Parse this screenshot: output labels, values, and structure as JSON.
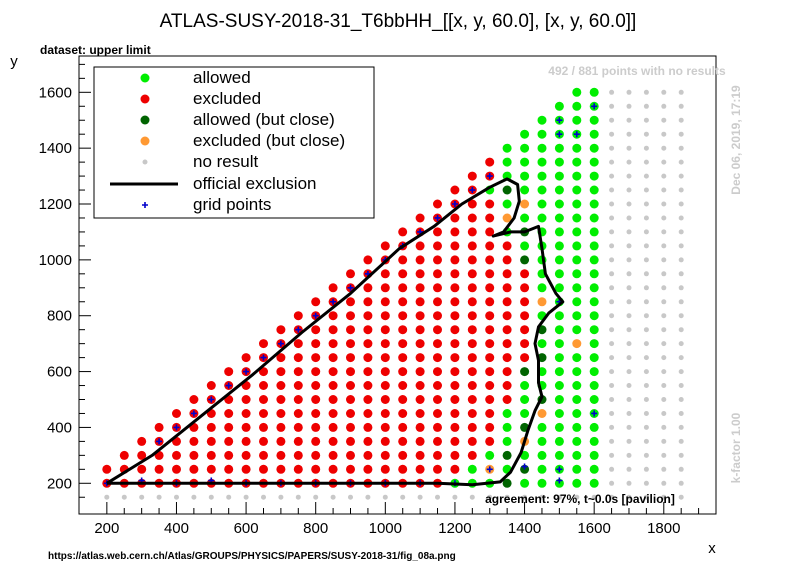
{
  "page": {
    "title": "ATLAS-SUSY-2018-31_T6bbHH_[[x, y, 60.0], [x, y, 60.0]]",
    "dataset_label": "dataset: upper limit",
    "points_note": "492 / 881 points with no results",
    "date_note": "Dec 06, 2019, 17:19",
    "kfactor_note": "k-factor 1.00",
    "agreement_note": "agreement: 97%, t~0.0s [pavilion]",
    "source_url": "https://atlas.web.cern.ch/Atlas/GROUPS/PHYSICS/PAPERS/SUSY-2018-31/fig_08a.png",
    "legend": {
      "allowed": "allowed",
      "excluded": "excluded",
      "allowed_close": "allowed (but close)",
      "excluded_close": "excluded (but close)",
      "no_result": "no result",
      "official": "official exclusion",
      "grid": "grid points"
    }
  },
  "colors": {
    "allowed": "#00ee00",
    "excluded": "#ee0000",
    "allowed_close": "#006400",
    "excluded_close": "#ff9933",
    "no_result": "#c8c8c8",
    "official": "#000000",
    "grid": "#0000cc"
  },
  "chart_data": {
    "type": "scatter",
    "title": "ATLAS-SUSY-2018-31_T6bbHH_[[x, y, 60.0], [x, y, 60.0]]",
    "xlabel": "x",
    "ylabel": "y",
    "xlim": [
      120,
      1950
    ],
    "ylim": [
      90,
      1730
    ],
    "x_ticks": [
      200,
      400,
      600,
      800,
      1000,
      1200,
      1400,
      1600,
      1800
    ],
    "y_ticks": [
      200,
      400,
      600,
      800,
      1000,
      1200,
      1400,
      1600
    ],
    "legend_position": "top-left",
    "grid_region": {
      "x_start": 200,
      "x_end": 1850,
      "x_step": 50,
      "y_start": 150,
      "y_end": 1600,
      "y_step": 50,
      "note": "points with y <= x + 50 on the lattice"
    },
    "classification_rule": {
      "allowed_boundary_x": [
        [
          200,
          1170
        ],
        [
          300,
          1300
        ],
        [
          450,
          1350
        ],
        [
          600,
          1400
        ],
        [
          750,
          1450
        ],
        [
          900,
          1450
        ],
        [
          1100,
          1350
        ],
        [
          1250,
          1300
        ],
        [
          1600,
          1350
        ]
      ],
      "result_limit_x": 1600,
      "excluded_close": [
        [
          1300,
          250
        ],
        [
          1400,
          350
        ],
        [
          1450,
          450
        ],
        [
          1550,
          700
        ],
        [
          1450,
          850
        ],
        [
          1350,
          1150
        ],
        [
          1400,
          1200
        ]
      ],
      "allowed_close": [
        [
          1350,
          200
        ],
        [
          1400,
          250
        ],
        [
          1350,
          300
        ],
        [
          1400,
          400
        ],
        [
          1450,
          500
        ],
        [
          1400,
          600
        ],
        [
          1450,
          650
        ],
        [
          1450,
          750
        ],
        [
          1400,
          1000
        ],
        [
          1350,
          1250
        ],
        [
          1400,
          1100
        ]
      ]
    },
    "official_exclusion": [
      [
        200,
        200
      ],
      [
        330,
        300
      ],
      [
        470,
        440
      ],
      [
        620,
        590
      ],
      [
        760,
        740
      ],
      [
        900,
        880
      ],
      [
        1040,
        1040
      ],
      [
        1140,
        1120
      ],
      [
        1220,
        1200
      ],
      [
        1300,
        1260
      ],
      [
        1350,
        1290
      ],
      [
        1380,
        1270
      ],
      [
        1385,
        1210
      ],
      [
        1370,
        1150
      ],
      [
        1340,
        1100
      ],
      [
        1310,
        1085
      ],
      [
        1360,
        1100
      ],
      [
        1400,
        1100
      ],
      [
        1440,
        1120
      ],
      [
        1450,
        1040
      ],
      [
        1460,
        950
      ],
      [
        1490,
        880
      ],
      [
        1510,
        850
      ],
      [
        1470,
        810
      ],
      [
        1440,
        760
      ],
      [
        1430,
        700
      ],
      [
        1440,
        640
      ],
      [
        1440,
        560
      ],
      [
        1450,
        510
      ],
      [
        1430,
        460
      ],
      [
        1410,
        390
      ],
      [
        1390,
        310
      ],
      [
        1360,
        240
      ],
      [
        1330,
        205
      ],
      [
        1250,
        195
      ],
      [
        1150,
        200
      ],
      [
        900,
        200
      ],
      [
        600,
        200
      ],
      [
        400,
        200
      ],
      [
        200,
        200
      ]
    ],
    "grid_points": [
      [
        200,
        200
      ],
      [
        300,
        210
      ],
      [
        400,
        200
      ],
      [
        500,
        210
      ],
      [
        600,
        200
      ],
      [
        700,
        200
      ],
      [
        800,
        200
      ],
      [
        900,
        200
      ],
      [
        1000,
        200
      ],
      [
        1100,
        200
      ],
      [
        1200,
        200
      ],
      [
        1300,
        250
      ],
      [
        1400,
        260
      ],
      [
        1500,
        210
      ],
      [
        1500,
        250
      ],
      [
        1500,
        850
      ],
      [
        1500,
        1450
      ],
      [
        1500,
        1500
      ],
      [
        1550,
        1450
      ],
      [
        1600,
        1550
      ],
      [
        1600,
        450
      ],
      [
        1300,
        1300
      ],
      [
        1250,
        1250
      ],
      [
        1200,
        1200
      ],
      [
        1150,
        1150
      ],
      [
        1100,
        1100
      ],
      [
        1050,
        1050
      ],
      [
        1000,
        1000
      ],
      [
        950,
        950
      ],
      [
        900,
        900
      ],
      [
        850,
        850
      ],
      [
        800,
        800
      ],
      [
        750,
        750
      ],
      [
        700,
        700
      ],
      [
        650,
        650
      ],
      [
        600,
        600
      ],
      [
        550,
        550
      ],
      [
        500,
        500
      ],
      [
        450,
        450
      ],
      [
        400,
        400
      ],
      [
        350,
        350
      ]
    ]
  }
}
